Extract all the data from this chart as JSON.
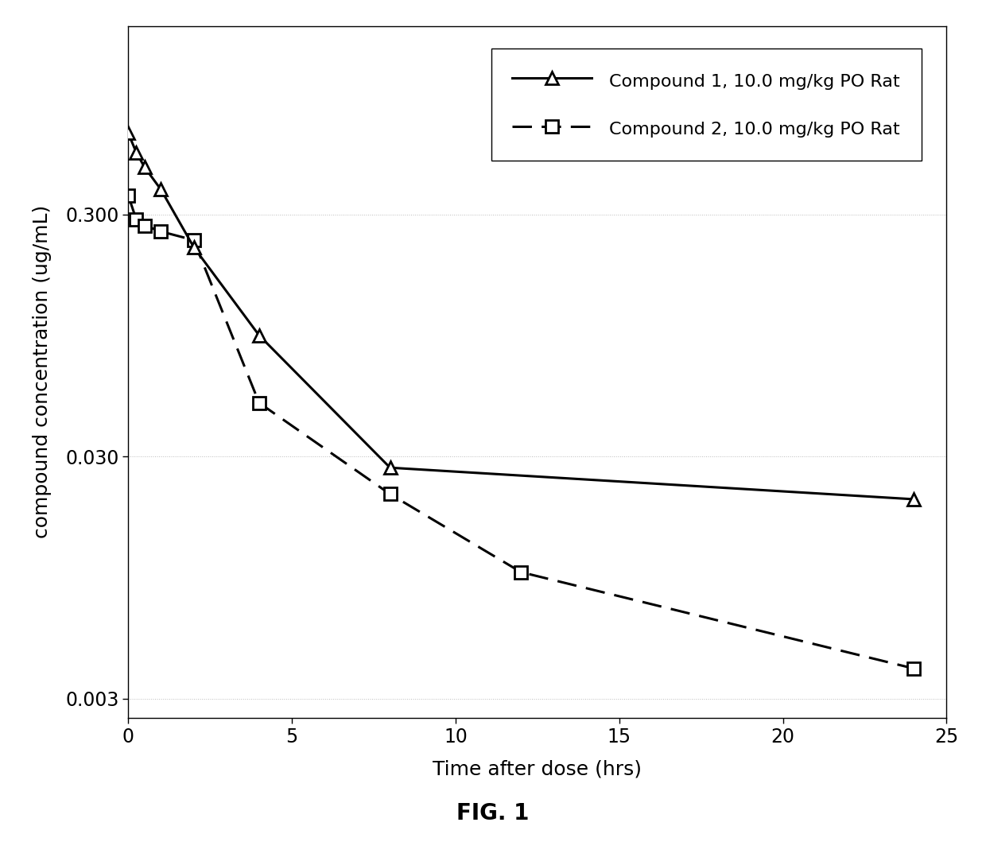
{
  "compound1_x": [
    0,
    0.25,
    0.5,
    1,
    2,
    4,
    8,
    24
  ],
  "compound1_y": [
    0.65,
    0.54,
    0.47,
    0.38,
    0.22,
    0.095,
    0.027,
    0.02
  ],
  "compound2_x": [
    0,
    0.25,
    0.5,
    1,
    2,
    4,
    8,
    12,
    24
  ],
  "compound2_y": [
    0.36,
    0.285,
    0.27,
    0.255,
    0.235,
    0.05,
    0.021,
    0.01,
    0.004
  ],
  "xlabel": "Time after dose (hrs)",
  "ylabel": "compound concentration (ug/mL)",
  "legend1": "Compound 1, 10.0 mg/kg PO Rat",
  "legend2": "Compound 2, 10.0 mg/kg PO Rat",
  "yticks": [
    0.003,
    0.03,
    0.3
  ],
  "ytick_labels": [
    "0.003",
    "0.030",
    "0.300"
  ],
  "xticks": [
    0,
    5,
    10,
    15,
    20,
    25
  ],
  "xlim": [
    0,
    25
  ],
  "ylim_log_min": 0.0025,
  "ylim_log_max": 1.8,
  "fig_caption": "FIG. 1",
  "background_color": "#ffffff",
  "line_color": "#000000",
  "grid_color": "#aaaaaa",
  "legend_fontsize": 16,
  "axis_label_fontsize": 18,
  "tick_fontsize": 17,
  "caption_fontsize": 20,
  "linewidth": 2.2,
  "markersize": 12
}
